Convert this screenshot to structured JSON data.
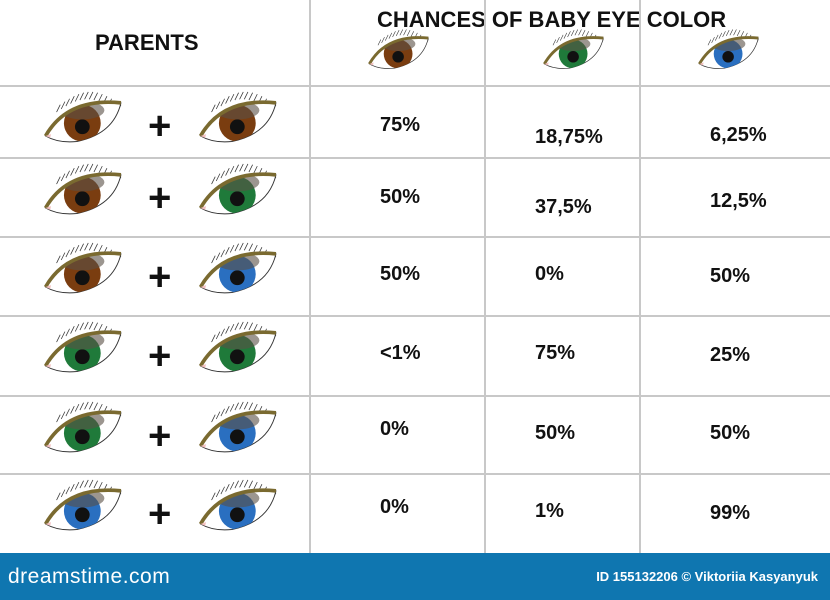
{
  "header": {
    "parents": "PARENTS",
    "chances": "CHANCES OF BABY EYE COLOR"
  },
  "eye_colors": {
    "brown": "#7a3d10",
    "green": "#1f7a3a",
    "blue": "#2a6fc0"
  },
  "child_columns": [
    "brown",
    "green",
    "blue"
  ],
  "plus": "+",
  "rows": [
    {
      "parents": [
        "brown",
        "brown"
      ],
      "values": [
        "75%",
        "18,75%",
        "6,25%"
      ]
    },
    {
      "parents": [
        "brown",
        "green"
      ],
      "values": [
        "50%",
        "37,5%",
        "12,5%"
      ]
    },
    {
      "parents": [
        "brown",
        "blue"
      ],
      "values": [
        "50%",
        "0%",
        "50%"
      ]
    },
    {
      "parents": [
        "green",
        "green"
      ],
      "values": [
        "<1%",
        "75%",
        "25%"
      ]
    },
    {
      "parents": [
        "green",
        "blue"
      ],
      "values": [
        "0%",
        "50%",
        "50%"
      ]
    },
    {
      "parents": [
        "blue",
        "blue"
      ],
      "values": [
        "0%",
        "1%",
        "99%"
      ]
    }
  ],
  "footer": {
    "logo": "dreamstime.com",
    "credit": "ID 155132206 © Viktoriia  Kasyanyuk"
  }
}
